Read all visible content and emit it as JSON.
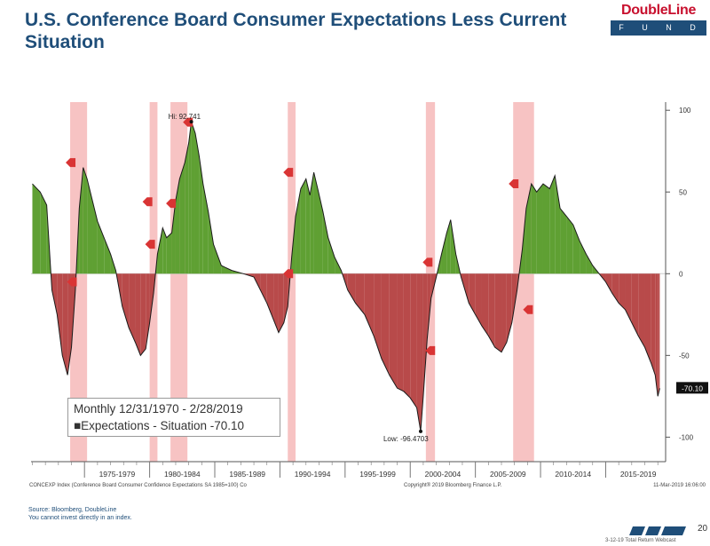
{
  "header": {
    "title": "U.S. Conference Board Consumer Expectations Less Current Situation",
    "logo_top": "DoubleLine",
    "logo_bottom": "F U N D S"
  },
  "legend_box": {
    "line1": "Monthly 12/31/1970 - 2/28/2019",
    "line2": "■Expectations - Situation -70.10"
  },
  "footer": {
    "source": "Source: Bloomberg, DoubleLine",
    "disclaimer": "You cannot invest directly in an index.",
    "index_note": "CONCEXP Index (Conference Board Consumer Confidence Expectations SA 1985=100) Co",
    "copyright": "Copyright® 2019 Bloomberg Finance L.P.",
    "timestamp": "11-Mar-2019 16:06:00",
    "page_number": "20",
    "webcast": "3-12-19 Total Return Webcast"
  },
  "chart_data": {
    "type": "area",
    "title": "U.S. Conference Board Consumer Expectations Less Current Situation",
    "xlim": [
      1970.9,
      2019.6
    ],
    "ylim": [
      -115,
      105
    ],
    "yticks": [
      100,
      50,
      0,
      -50,
      -100
    ],
    "x_tick_labels": [
      "1975-1979",
      "1980-1984",
      "1985-1989",
      "1990-1994",
      "1995-1999",
      "2000-2004",
      "2005-2009",
      "2010-2014",
      "2015-2019"
    ],
    "x_tick_centers": [
      1977.5,
      1982.5,
      1987.5,
      1992.5,
      1997.5,
      2002.5,
      2007.5,
      2012.5,
      2017.5
    ],
    "colors": {
      "positive": "#5fa033",
      "negative": "#b84a4a",
      "recession": "#f6b8b8",
      "marker": "#d93434"
    },
    "recessions": [
      [
        1973.9,
        1975.2
      ],
      [
        1980.0,
        1980.6
      ],
      [
        1981.6,
        1982.9
      ],
      [
        1990.6,
        1991.2
      ],
      [
        2001.2,
        2001.9
      ],
      [
        2007.9,
        2009.5
      ]
    ],
    "points": [
      [
        1971.0,
        55
      ],
      [
        1971.6,
        50
      ],
      [
        1972.1,
        42
      ],
      [
        1972.5,
        -10
      ],
      [
        1972.9,
        -25
      ],
      [
        1973.3,
        -50
      ],
      [
        1973.7,
        -62
      ],
      [
        1974.0,
        -45
      ],
      [
        1974.3,
        -10
      ],
      [
        1974.6,
        40
      ],
      [
        1974.9,
        65
      ],
      [
        1975.2,
        58
      ],
      [
        1975.6,
        45
      ],
      [
        1976.0,
        32
      ],
      [
        1976.5,
        22
      ],
      [
        1977.0,
        12
      ],
      [
        1977.4,
        2
      ],
      [
        1977.9,
        -20
      ],
      [
        1978.4,
        -33
      ],
      [
        1978.9,
        -42
      ],
      [
        1979.3,
        -50
      ],
      [
        1979.7,
        -46
      ],
      [
        1980.0,
        -30
      ],
      [
        1980.3,
        -12
      ],
      [
        1980.6,
        12
      ],
      [
        1981.0,
        28
      ],
      [
        1981.3,
        22
      ],
      [
        1981.7,
        25
      ],
      [
        1982.0,
        45
      ],
      [
        1982.3,
        58
      ],
      [
        1982.7,
        68
      ],
      [
        1983.0,
        80
      ],
      [
        1983.2,
        93
      ],
      [
        1983.5,
        86
      ],
      [
        1983.8,
        72
      ],
      [
        1984.1,
        55
      ],
      [
        1984.5,
        38
      ],
      [
        1984.9,
        18
      ],
      [
        1985.5,
        5
      ],
      [
        1986.3,
        2
      ],
      [
        1987.2,
        0
      ],
      [
        1988.0,
        -2
      ],
      [
        1988.5,
        -10
      ],
      [
        1989.0,
        -18
      ],
      [
        1989.5,
        -28
      ],
      [
        1989.9,
        -36
      ],
      [
        1990.3,
        -30
      ],
      [
        1990.6,
        -20
      ],
      [
        1990.9,
        10
      ],
      [
        1991.2,
        35
      ],
      [
        1991.6,
        52
      ],
      [
        1992.0,
        58
      ],
      [
        1992.3,
        48
      ],
      [
        1992.6,
        62
      ],
      [
        1992.9,
        52
      ],
      [
        1993.3,
        38
      ],
      [
        1993.7,
        22
      ],
      [
        1994.2,
        10
      ],
      [
        1994.7,
        2
      ],
      [
        1995.2,
        -10
      ],
      [
        1995.8,
        -18
      ],
      [
        1996.5,
        -25
      ],
      [
        1997.2,
        -38
      ],
      [
        1997.8,
        -52
      ],
      [
        1998.4,
        -62
      ],
      [
        1999.0,
        -70
      ],
      [
        1999.5,
        -72
      ],
      [
        2000.0,
        -76
      ],
      [
        2000.5,
        -82
      ],
      [
        2000.8,
        -96.4703
      ],
      [
        2001.0,
        -75
      ],
      [
        2001.3,
        -40
      ],
      [
        2001.6,
        -15
      ],
      [
        2002.0,
        -2
      ],
      [
        2002.4,
        12
      ],
      [
        2002.8,
        25
      ],
      [
        2003.1,
        33
      ],
      [
        2003.5,
        12
      ],
      [
        2003.9,
        -2
      ],
      [
        2004.5,
        -18
      ],
      [
        2005.0,
        -25
      ],
      [
        2005.5,
        -32
      ],
      [
        2006.0,
        -38
      ],
      [
        2006.5,
        -45
      ],
      [
        2007.0,
        -48
      ],
      [
        2007.4,
        -42
      ],
      [
        2007.8,
        -30
      ],
      [
        2008.2,
        -10
      ],
      [
        2008.6,
        15
      ],
      [
        2008.9,
        40
      ],
      [
        2009.3,
        55
      ],
      [
        2009.7,
        50
      ],
      [
        2010.2,
        55
      ],
      [
        2010.7,
        52
      ],
      [
        2011.1,
        60
      ],
      [
        2011.5,
        40
      ],
      [
        2012.0,
        35
      ],
      [
        2012.5,
        30
      ],
      [
        2013.0,
        20
      ],
      [
        2013.5,
        12
      ],
      [
        2014.0,
        5
      ],
      [
        2014.5,
        0
      ],
      [
        2015.0,
        -5
      ],
      [
        2015.5,
        -12
      ],
      [
        2016.0,
        -18
      ],
      [
        2016.5,
        -22
      ],
      [
        2017.0,
        -30
      ],
      [
        2017.5,
        -38
      ],
      [
        2018.0,
        -45
      ],
      [
        2018.5,
        -55
      ],
      [
        2018.8,
        -62
      ],
      [
        2019.0,
        -75
      ],
      [
        2019.15,
        -70.1
      ]
    ],
    "markers": [
      {
        "x": 1973.9,
        "y": 68
      },
      {
        "x": 1974.0,
        "y": -5
      },
      {
        "x": 1979.8,
        "y": 44
      },
      {
        "x": 1980.0,
        "y": 18
      },
      {
        "x": 1981.6,
        "y": 43
      },
      {
        "x": 1982.9,
        "y": 92.741
      },
      {
        "x": 1990.6,
        "y": 62
      },
      {
        "x": 1990.6,
        "y": 0
      },
      {
        "x": 2001.3,
        "y": 7
      },
      {
        "x": 2001.5,
        "y": -47
      },
      {
        "x": 2007.9,
        "y": 55
      },
      {
        "x": 2009.0,
        "y": -22
      }
    ],
    "annotations": [
      {
        "text": "Hi: 92.741",
        "x": 1983.2,
        "y": 93
      },
      {
        "text": "Low: -96.4703",
        "x": 2000.8,
        "y": -96.4703
      }
    ],
    "last_value_label": "-70.10"
  }
}
